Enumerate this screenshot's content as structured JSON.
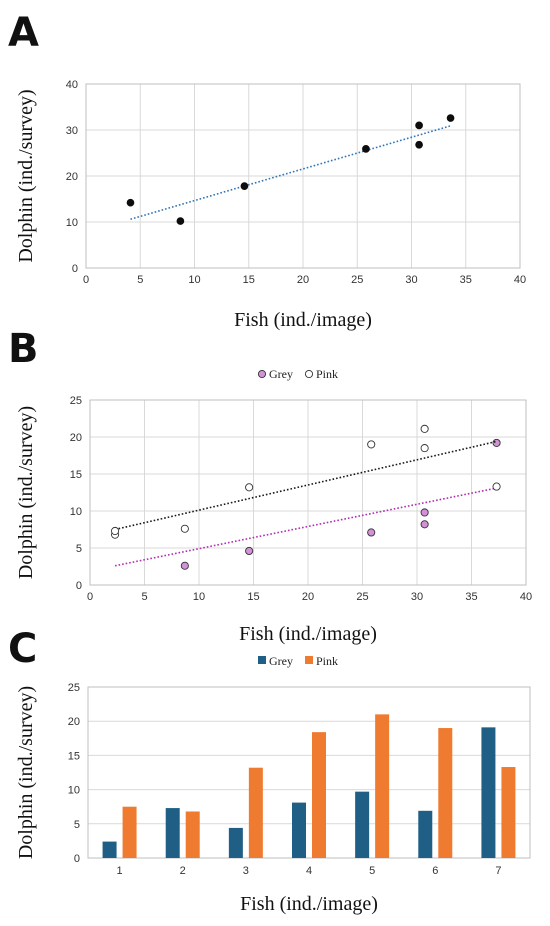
{
  "colors": {
    "dot_black": "#0d0d0d",
    "trend_a": "#2e75b6",
    "grey_point": "#d391d8",
    "pink_point": "#ffffff",
    "grey_bar": "#1f5f86",
    "pink_bar": "#ef7b31",
    "trend_grey": "#b02cb0",
    "trend_pink": "#1a1a1a"
  },
  "panel_labels": {
    "a": "A",
    "b": "B",
    "c": "C"
  },
  "chart_data": [
    {
      "id": "A",
      "type": "scatter",
      "xlabel": "Fish (ind./image)",
      "ylabel": "Dolphin (ind./survey)",
      "xlim": [
        0,
        40
      ],
      "ylim": [
        0,
        40
      ],
      "xticks": [
        0,
        5,
        10,
        15,
        20,
        25,
        30,
        35,
        40
      ],
      "yticks": [
        0,
        10,
        20,
        30,
        40
      ],
      "grid": true,
      "legend": "none",
      "series": [
        {
          "points": [
            [
              4.1,
              14.2
            ],
            [
              8.7,
              10.2
            ],
            [
              14.6,
              17.8
            ],
            [
              25.8,
              25.9
            ],
            [
              30.7,
              31.0
            ],
            [
              30.7,
              26.8
            ],
            [
              33.6,
              32.6
            ]
          ],
          "trendline": {
            "x": [
              4.1,
              33.6
            ],
            "y": [
              10.6,
              30.9
            ]
          }
        }
      ]
    },
    {
      "id": "B",
      "type": "scatter",
      "xlabel": "Fish (ind./image)",
      "ylabel": "Dolphin (ind./survey)",
      "xlim": [
        0,
        40
      ],
      "ylim": [
        0,
        25
      ],
      "xticks": [
        0,
        5,
        10,
        15,
        20,
        25,
        30,
        35,
        40
      ],
      "yticks": [
        0,
        5,
        10,
        15,
        20,
        25
      ],
      "grid": true,
      "legend": "top-center",
      "series": [
        {
          "name": "Grey",
          "points": [
            [
              8.7,
              2.6
            ],
            [
              14.6,
              4.6
            ],
            [
              25.8,
              7.1
            ],
            [
              30.7,
              9.8
            ],
            [
              30.7,
              8.2
            ],
            [
              37.3,
              19.2
            ]
          ],
          "trendline": {
            "x": [
              2.3,
              37.3
            ],
            "y": [
              2.6,
              13.1
            ]
          }
        },
        {
          "name": "Pink",
          "points": [
            [
              2.3,
              6.8
            ],
            [
              2.3,
              7.3
            ],
            [
              8.7,
              7.6
            ],
            [
              14.6,
              13.2
            ],
            [
              25.8,
              19.0
            ],
            [
              30.7,
              21.1
            ],
            [
              30.7,
              18.5
            ],
            [
              37.3,
              13.3
            ]
          ],
          "trendline": {
            "x": [
              2.3,
              37.3
            ],
            "y": [
              7.5,
              19.4
            ]
          }
        }
      ]
    },
    {
      "id": "C",
      "type": "bar",
      "xlabel": "Fish (ind./image)",
      "ylabel": "Dolphin (ind./survey)",
      "categories": [
        "1",
        "2",
        "3",
        "4",
        "5",
        "6",
        "7"
      ],
      "ylim": [
        0,
        25
      ],
      "yticks": [
        0,
        5,
        10,
        15,
        20,
        25
      ],
      "grid": true,
      "legend": "top-center",
      "series": [
        {
          "name": "Grey",
          "values": [
            2.4,
            7.3,
            4.4,
            8.1,
            9.7,
            6.9,
            19.1
          ]
        },
        {
          "name": "Pink",
          "values": [
            7.5,
            6.8,
            13.2,
            18.4,
            21.0,
            19.0,
            13.3
          ]
        }
      ]
    }
  ]
}
